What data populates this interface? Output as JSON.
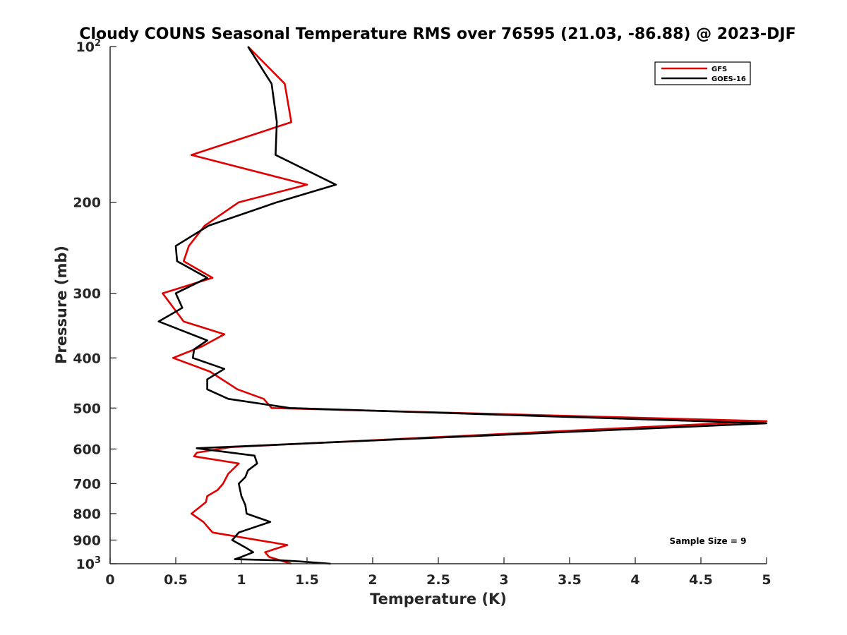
{
  "chart_data": {
    "type": "line",
    "title": "Cloudy COUNS Seasonal Temperature RMS over 76595 (21.03, -86.88) @ 2023-DJF",
    "xlabel": "Temperature (K)",
    "ylabel": "Pressure (mb)",
    "xlim": [
      0,
      5
    ],
    "ylim": [
      100,
      1000
    ],
    "yscale": "log",
    "ydirection": "reverse",
    "x_ticks": [
      0,
      0.5,
      1,
      1.5,
      2,
      2.5,
      3,
      3.5,
      4,
      4.5,
      5
    ],
    "x_tick_labels": [
      "0",
      "0.5",
      "1",
      "1.5",
      "2",
      "2.5",
      "3",
      "3.5",
      "4",
      "4.5",
      "5"
    ],
    "y_ticks": [
      {
        "value": 100,
        "base": "10",
        "exp": "2"
      },
      {
        "value": 200,
        "label": "200"
      },
      {
        "value": 300,
        "label": "300"
      },
      {
        "value": 400,
        "label": "400"
      },
      {
        "value": 500,
        "label": "500"
      },
      {
        "value": 600,
        "label": "600"
      },
      {
        "value": 700,
        "label": "700"
      },
      {
        "value": 800,
        "label": "800"
      },
      {
        "value": 900,
        "label": "900"
      },
      {
        "value": 1000,
        "base": "10",
        "exp": "3"
      }
    ],
    "legend": {
      "location": "top-right",
      "entries": [
        "GFS",
        "GOES-16"
      ]
    },
    "annotation": "Sample Size = 9",
    "series": [
      {
        "name": "GFS",
        "color": "#e00000",
        "points": [
          [
            1.05,
            100
          ],
          [
            1.33,
            118
          ],
          [
            1.38,
            140
          ],
          [
            0.62,
            162
          ],
          [
            1.5,
            185
          ],
          [
            0.98,
            200
          ],
          [
            0.72,
            222
          ],
          [
            0.6,
            243
          ],
          [
            0.56,
            260
          ],
          [
            0.78,
            280
          ],
          [
            0.4,
            300
          ],
          [
            0.56,
            340
          ],
          [
            0.87,
            360
          ],
          [
            0.7,
            380
          ],
          [
            0.48,
            400
          ],
          [
            0.76,
            425
          ],
          [
            0.97,
            460
          ],
          [
            1.17,
            480
          ],
          [
            1.23,
            500
          ],
          [
            5.0,
            530
          ],
          [
            0.92,
            595
          ],
          [
            0.66,
            610
          ],
          [
            0.64,
            620
          ],
          [
            0.98,
            640
          ],
          [
            0.9,
            670
          ],
          [
            0.86,
            700
          ],
          [
            0.82,
            720
          ],
          [
            0.74,
            740
          ],
          [
            0.73,
            760
          ],
          [
            0.62,
            800
          ],
          [
            0.71,
            830
          ],
          [
            0.78,
            870
          ],
          [
            1.35,
            920
          ],
          [
            1.18,
            950
          ],
          [
            1.21,
            970
          ],
          [
            1.38,
            1000
          ]
        ]
      },
      {
        "name": "GOES-16",
        "color": "#000000",
        "points": [
          [
            1.05,
            100
          ],
          [
            1.23,
            118
          ],
          [
            1.27,
            140
          ],
          [
            1.26,
            162
          ],
          [
            1.72,
            185
          ],
          [
            1.27,
            200
          ],
          [
            0.75,
            222
          ],
          [
            0.5,
            243
          ],
          [
            0.51,
            260
          ],
          [
            0.74,
            280
          ],
          [
            0.5,
            300
          ],
          [
            0.55,
            320
          ],
          [
            0.37,
            340
          ],
          [
            0.74,
            370
          ],
          [
            0.64,
            385
          ],
          [
            0.63,
            400
          ],
          [
            0.87,
            420
          ],
          [
            0.74,
            440
          ],
          [
            0.74,
            460
          ],
          [
            0.9,
            480
          ],
          [
            1.37,
            500
          ],
          [
            5.0,
            535
          ],
          [
            0.66,
            598
          ],
          [
            1.1,
            618
          ],
          [
            1.12,
            640
          ],
          [
            1.05,
            660
          ],
          [
            1.03,
            680
          ],
          [
            0.98,
            700
          ],
          [
            1.0,
            740
          ],
          [
            1.03,
            770
          ],
          [
            1.04,
            800
          ],
          [
            1.22,
            830
          ],
          [
            0.98,
            870
          ],
          [
            0.93,
            900
          ],
          [
            1.03,
            930
          ],
          [
            1.09,
            950
          ],
          [
            1.0,
            970
          ],
          [
            0.95,
            980
          ],
          [
            1.3,
            985
          ],
          [
            1.45,
            990
          ],
          [
            1.68,
            1000
          ]
        ]
      }
    ]
  }
}
